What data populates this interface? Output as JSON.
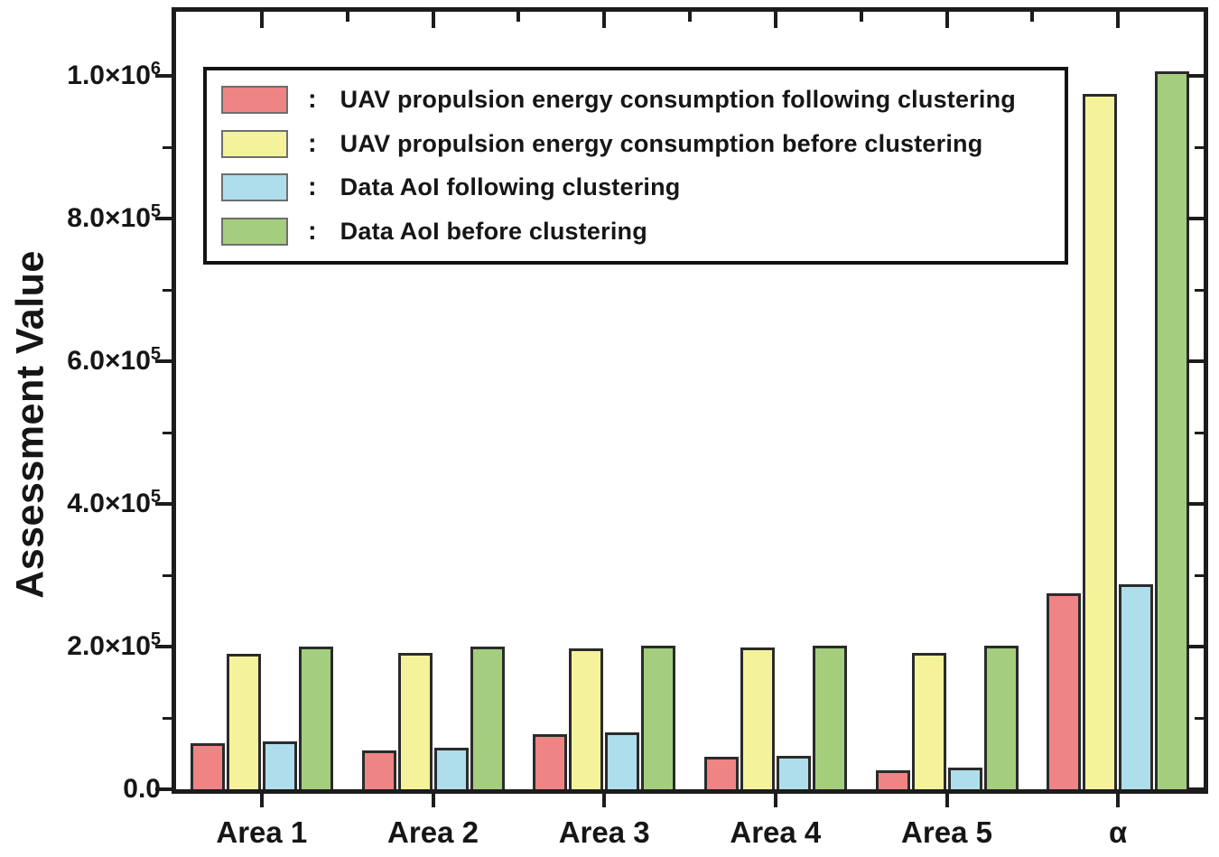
{
  "y_axis_title": "Assessment Value",
  "chart_data": {
    "type": "bar",
    "title": "",
    "xlabel": "",
    "ylabel": "Assessment Value",
    "categories": [
      "Area 1",
      "Area 2",
      "Area 3",
      "Area 4",
      "Area 5",
      "α"
    ],
    "series": [
      {
        "name": "UAV propulsion energy consumption following clustering",
        "color": "#ee8484",
        "values": [
          64000,
          54000,
          77000,
          46000,
          27000,
          275000
        ]
      },
      {
        "name": "UAV propulsion energy consumption before clustering",
        "color": "#f5f29c",
        "values": [
          190000,
          191000,
          198000,
          199000,
          191000,
          975000
        ]
      },
      {
        "name": "Data AoI following clustering",
        "color": "#aedeeb",
        "values": [
          67000,
          58000,
          80000,
          47000,
          30000,
          288000
        ]
      },
      {
        "name": "Data AoI before clustering",
        "color": "#a4ce7e",
        "values": [
          200000,
          200000,
          201000,
          201000,
          201000,
          1007000
        ]
      }
    ],
    "ylim": [
      0,
      1090000
    ],
    "yticks": [
      {
        "value": 0,
        "base": "0.0",
        "exp": null
      },
      {
        "value": 200000,
        "base": "2.0×10",
        "exp": "5"
      },
      {
        "value": 400000,
        "base": "4.0×10",
        "exp": "5"
      },
      {
        "value": 600000,
        "base": "6.0×10",
        "exp": "5"
      },
      {
        "value": 800000,
        "base": "8.0×10",
        "exp": "5"
      },
      {
        "value": 1000000,
        "base": "1.0×10",
        "exp": "6"
      }
    ],
    "minor_tick_interval": 100000,
    "grid": "off",
    "legend_position": "top-left",
    "legend_separator": ":"
  },
  "colors": {
    "axis": "#1c1c1c",
    "bar_border": "#2b2b2b",
    "background": "#ffffff"
  }
}
